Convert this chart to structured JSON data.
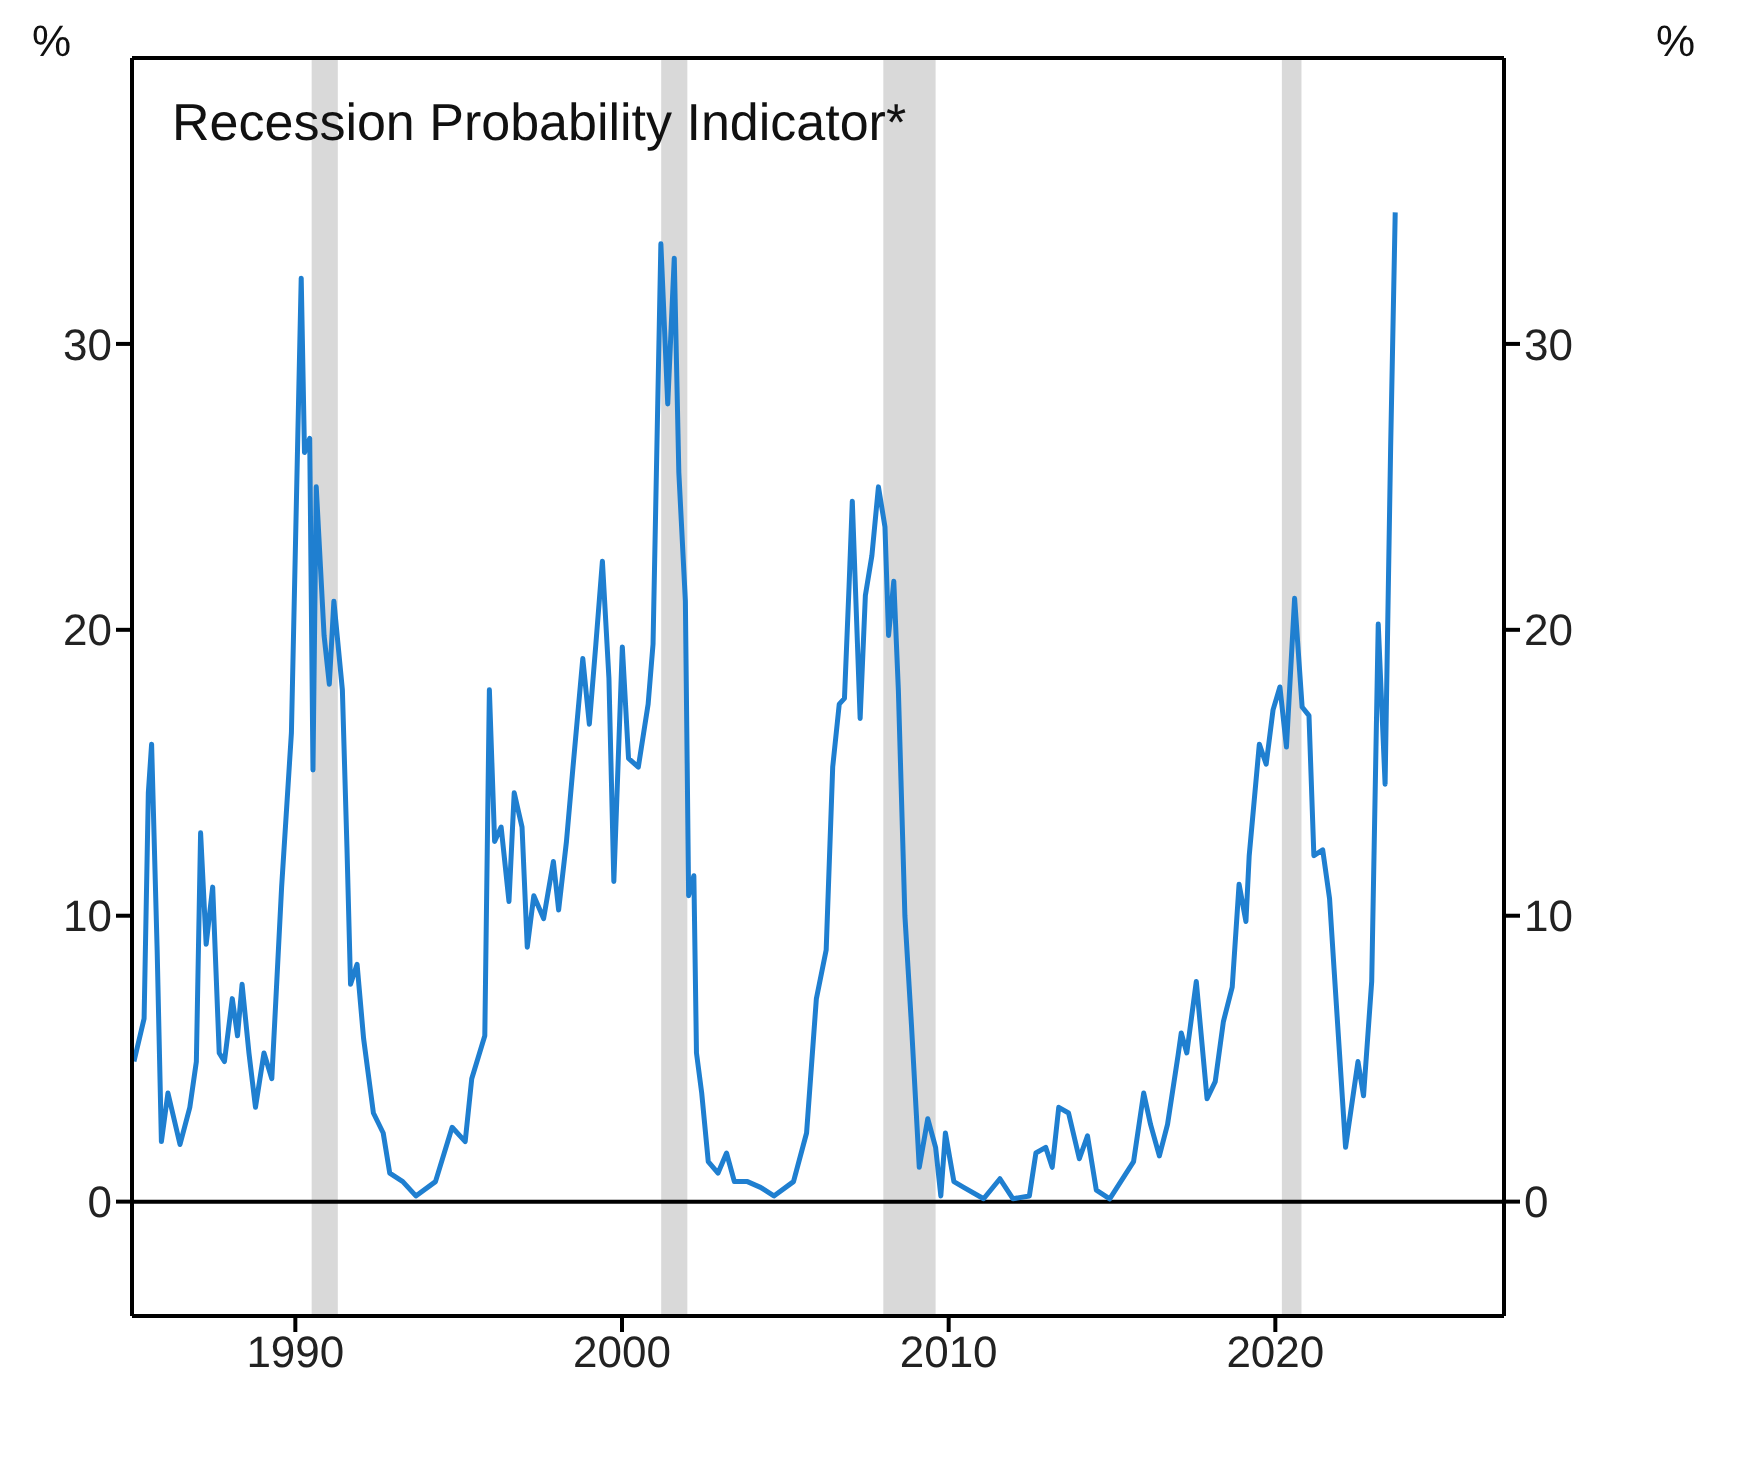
{
  "chart_data": {
    "type": "line",
    "title": "Recession Probability Indicator*",
    "ylabel": "%",
    "y2label": "%",
    "x": [
      1985.06,
      1985.37,
      1985.5,
      1985.6,
      1985.77,
      1985.9,
      1986.1,
      1986.47,
      1986.77,
      1986.97,
      1987.1,
      1987.27,
      1987.47,
      1987.67,
      1987.83,
      1988.07,
      1988.23,
      1988.37,
      1988.58,
      1988.78,
      1989.04,
      1989.28,
      1989.58,
      1989.88,
      1990.18,
      1990.28,
      1990.44,
      1990.54,
      1990.64,
      1990.88,
      1991.04,
      1991.18,
      1991.44,
      1991.58,
      1991.69,
      1991.89,
      1992.09,
      1992.39,
      1992.69,
      1992.89,
      1993.29,
      1993.69,
      1994.29,
      1994.8,
      1995.2,
      1995.4,
      1995.8,
      1995.94,
      1996.1,
      1996.3,
      1996.54,
      1996.7,
      1996.94,
      1997.1,
      1997.3,
      1997.6,
      1997.9,
      1998.06,
      1998.3,
      1998.5,
      1998.8,
      1999.0,
      1999.2,
      1999.4,
      1999.6,
      1999.75,
      2000.01,
      2000.2,
      2000.5,
      2000.8,
      2000.95,
      2001.19,
      2001.4,
      2001.6,
      2001.74,
      2001.94,
      2002.04,
      2002.2,
      2002.28,
      2002.44,
      2002.64,
      2002.94,
      2003.2,
      2003.44,
      2003.84,
      2004.24,
      2004.65,
      2005.25,
      2005.65,
      2005.95,
      2006.25,
      2006.45,
      2006.65,
      2006.81,
      2006.95,
      2007.05,
      2007.29,
      2007.45,
      2007.65,
      2007.85,
      2008.05,
      2008.16,
      2008.32,
      2008.46,
      2008.66,
      2008.86,
      2009.1,
      2009.36,
      2009.6,
      2009.76,
      2009.9,
      2010.16,
      2010.46,
      2011.07,
      2011.57,
      2011.97,
      2012.47,
      2012.67,
      2012.97,
      2013.17,
      2013.37,
      2013.67,
      2014.0,
      2014.25,
      2014.52,
      2014.93,
      2015.66,
      2015.97,
      2016.18,
      2016.45,
      2016.7,
      2017.02,
      2017.12,
      2017.29,
      2017.58,
      2017.91,
      2018.16,
      2018.41,
      2018.68,
      2018.89,
      2019.1,
      2019.2,
      2019.51,
      2019.72,
      2019.93,
      2020.14,
      2020.34,
      2020.59,
      2020.82,
      2021.03,
      2021.18,
      2021.45,
      2021.66,
      2021.8,
      2022.15,
      2022.53,
      2022.7,
      2022.95,
      2023.15,
      2023.36,
      2023.53,
      2023.67
    ],
    "series": [
      {
        "color": "#1f7fd0",
        "values": [
          4.9,
          6.4,
          14.3,
          16.0,
          8.8,
          2.1,
          3.8,
          2.0,
          3.3,
          4.9,
          12.9,
          9.0,
          11.0,
          5.2,
          4.9,
          7.1,
          5.8,
          7.6,
          5.2,
          3.3,
          5.2,
          4.3,
          11.0,
          16.4,
          32.3,
          26.2,
          26.7,
          15.1,
          25.0,
          19.8,
          18.1,
          21.0,
          17.9,
          12.4,
          7.6,
          8.3,
          5.7,
          3.1,
          2.4,
          1.0,
          0.7,
          0.2,
          0.7,
          2.6,
          2.1,
          4.3,
          5.8,
          17.9,
          12.6,
          13.1,
          10.5,
          14.3,
          13.1,
          8.9,
          10.7,
          9.9,
          11.9,
          10.2,
          12.6,
          15.2,
          19.0,
          16.7,
          19.5,
          22.4,
          18.3,
          11.2,
          19.4,
          15.5,
          15.2,
          17.4,
          19.5,
          33.5,
          27.9,
          33.0,
          25.5,
          21.0,
          10.7,
          11.4,
          5.2,
          3.8,
          1.4,
          1.0,
          1.7,
          0.7,
          0.7,
          0.5,
          0.2,
          0.7,
          2.4,
          7.1,
          8.8,
          15.2,
          17.4,
          17.6,
          21.5,
          24.5,
          16.9,
          21.2,
          22.6,
          25.0,
          23.6,
          19.8,
          21.7,
          17.9,
          10.0,
          6.2,
          1.2,
          2.9,
          1.9,
          0.2,
          2.4,
          0.7,
          0.5,
          0.1,
          0.8,
          0.1,
          0.2,
          1.7,
          1.9,
          1.2,
          3.3,
          3.1,
          1.5,
          2.3,
          0.4,
          0.1,
          1.4,
          3.8,
          2.7,
          1.6,
          2.7,
          5.1,
          5.9,
          5.2,
          7.7,
          3.6,
          4.2,
          6.3,
          7.5,
          11.1,
          9.8,
          12.1,
          16.0,
          15.3,
          17.2,
          18.0,
          15.9,
          21.1,
          17.3,
          17.0,
          12.1,
          12.3,
          10.6,
          8.1,
          1.9,
          4.9,
          3.7,
          7.7,
          20.2,
          14.6,
          26.4,
          34.6
        ]
      }
    ],
    "xlim": [
      1985,
      2027
    ],
    "xticks": [
      1990,
      2000,
      2010,
      2020
    ],
    "ylim": [
      -4,
      40
    ],
    "yticks": [
      0,
      10,
      20,
      30
    ],
    "y2lim": [
      -4,
      40
    ],
    "y2ticks": [
      0,
      10,
      20,
      30
    ],
    "bands": [
      {
        "axis": "x",
        "from": 1990.5,
        "to": 1991.3,
        "color": "#d9d9d9"
      },
      {
        "axis": "x",
        "from": 2001.2,
        "to": 2002.0,
        "color": "#d9d9d9"
      },
      {
        "axis": "x",
        "from": 2008.0,
        "to": 2009.6,
        "color": "#d9d9d9"
      },
      {
        "axis": "x",
        "from": 2020.2,
        "to": 2020.8,
        "color": "#d9d9d9"
      }
    ],
    "ref_lines": [
      {
        "axis": "y",
        "value": 0,
        "color": "#000000"
      }
    ],
    "marker": "none",
    "line_style": "solid",
    "grid": false,
    "legend": false
  }
}
